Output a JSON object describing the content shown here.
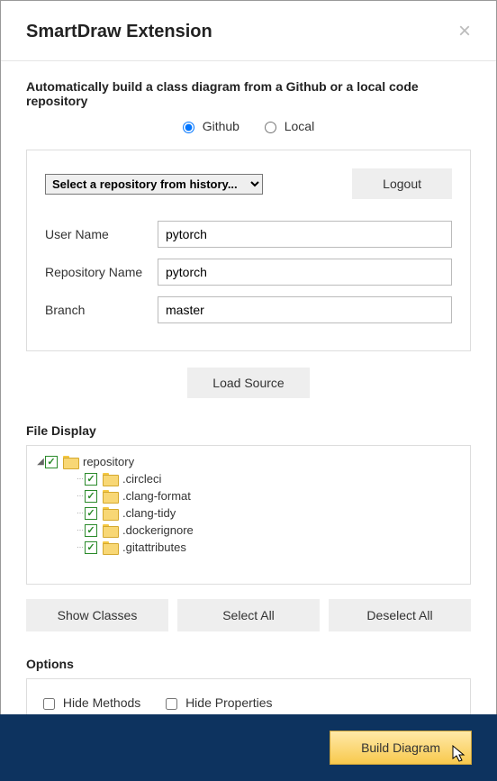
{
  "header": {
    "title": "SmartDraw Extension"
  },
  "subtitle": "Automatically build a class diagram from a Github or a local code repository",
  "source": {
    "github_label": "Github",
    "local_label": "Local",
    "selected": "github"
  },
  "repo": {
    "history_placeholder": "Select a repository from history...",
    "logout_label": "Logout",
    "fields": {
      "username_label": "User Name",
      "username_value": "pytorch",
      "reponame_label": "Repository Name",
      "reponame_value": "pytorch",
      "branch_label": "Branch",
      "branch_value": "master"
    },
    "load_source_label": "Load Source"
  },
  "file_display": {
    "label": "File Display",
    "tree": [
      {
        "level": 0,
        "expanded": true,
        "checked": true,
        "name": "repository"
      },
      {
        "level": 1,
        "checked": true,
        "name": ".circleci"
      },
      {
        "level": 1,
        "checked": true,
        "name": ".clang-format"
      },
      {
        "level": 1,
        "checked": true,
        "name": ".clang-tidy"
      },
      {
        "level": 1,
        "checked": true,
        "name": ".dockerignore"
      },
      {
        "level": 1,
        "checked": true,
        "name": ".gitattributes"
      }
    ],
    "show_classes_label": "Show Classes",
    "select_all_label": "Select All",
    "deselect_all_label": "Deselect All"
  },
  "options": {
    "label": "Options",
    "hide_methods_label": "Hide Methods",
    "hide_properties_label": "Hide Properties",
    "hide_methods_checked": false,
    "hide_properties_checked": false
  },
  "footer": {
    "build_label": "Build Diagram"
  },
  "colors": {
    "footer_bg": "#0d335f",
    "build_btn_top": "#ffe9a8",
    "build_btn_bottom": "#f8c94d",
    "check_green": "#2a8a2a",
    "folder": "#f8d775"
  }
}
